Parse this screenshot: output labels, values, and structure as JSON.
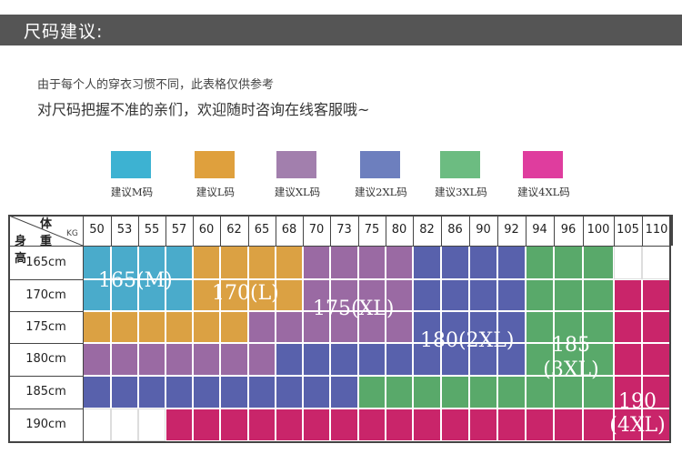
{
  "header": {
    "title": "尺码建议:"
  },
  "notes": {
    "line1": "由于每个人的穿衣习惯不同，此表格仅供参考",
    "line2": "对尺码把握不准的亲们，欢迎随时咨询在线客服哦~"
  },
  "colors": {
    "M": "#4aabcb",
    "L": "#dba143",
    "XL": "#9a6aa3",
    "2XL": "#5861ac",
    "3XL": "#59a96a",
    "4XL": "#c9256a",
    "blank": "#ffffff"
  },
  "legend": [
    {
      "label": "建议M码",
      "color": "#3db2d2"
    },
    {
      "label": "建议L码",
      "color": "#dfa03d"
    },
    {
      "label": "建议XL码",
      "color": "#a27fad"
    },
    {
      "label": "建议2XL码",
      "color": "#6d7fbe"
    },
    {
      "label": "建议3XL码",
      "color": "#6cbc81"
    },
    {
      "label": "建议4XL码",
      "color": "#df3d9e"
    }
  ],
  "table": {
    "corner_weight": "体重",
    "corner_unit": "KG",
    "corner_height": "身高",
    "weights": [
      "50",
      "53",
      "55",
      "57",
      "60",
      "62",
      "65",
      "68",
      "70",
      "73",
      "75",
      "80",
      "82",
      "86",
      "90",
      "92",
      "94",
      "96",
      "100",
      "105",
      "110"
    ],
    "heights": [
      "165cm",
      "170cm",
      "175cm",
      "180cm",
      "185cm",
      "190cm"
    ],
    "rows": [
      [
        "M",
        "M",
        "M",
        "M",
        "L",
        "L",
        "L",
        "L",
        "XL",
        "XL",
        "XL",
        "XL",
        "2XL",
        "2XL",
        "2XL",
        "2XL",
        "3XL",
        "3XL",
        "3XL",
        "blank",
        "blank"
      ],
      [
        "M",
        "M",
        "M",
        "M",
        "L",
        "L",
        "L",
        "L",
        "XL",
        "XL",
        "XL",
        "XL",
        "2XL",
        "2XL",
        "2XL",
        "2XL",
        "3XL",
        "3XL",
        "3XL",
        "4XL",
        "4XL"
      ],
      [
        "L",
        "L",
        "L",
        "L",
        "L",
        "L",
        "XL",
        "XL",
        "XL",
        "XL",
        "XL",
        "XL",
        "2XL",
        "2XL",
        "2XL",
        "2XL",
        "3XL",
        "3XL",
        "3XL",
        "4XL",
        "4XL"
      ],
      [
        "XL",
        "XL",
        "XL",
        "XL",
        "XL",
        "XL",
        "XL",
        "2XL",
        "2XL",
        "2XL",
        "2XL",
        "2XL",
        "2XL",
        "2XL",
        "2XL",
        "2XL",
        "3XL",
        "3XL",
        "3XL",
        "4XL",
        "4XL"
      ],
      [
        "2XL",
        "2XL",
        "2XL",
        "2XL",
        "2XL",
        "2XL",
        "2XL",
        "2XL",
        "2XL",
        "2XL",
        "3XL",
        "3XL",
        "3XL",
        "3XL",
        "3XL",
        "3XL",
        "3XL",
        "3XL",
        "3XL",
        "4XL",
        "4XL"
      ],
      [
        "blank",
        "blank",
        "blank",
        "4XL",
        "4XL",
        "4XL",
        "4XL",
        "4XL",
        "4XL",
        "4XL",
        "4XL",
        "4XL",
        "4XL",
        "4XL",
        "4XL",
        "4XL",
        "4XL",
        "4XL",
        "4XL",
        "4XL",
        "4XL"
      ]
    ],
    "size_labels": {
      "M": "165(M)",
      "L": "170(L)",
      "XL": "175(XL)",
      "2XL": "180(2XL)",
      "3XL_1": "185",
      "3XL_2": "(3XL)",
      "4XL_1": "190",
      "4XL_2": "(4XL)"
    }
  }
}
